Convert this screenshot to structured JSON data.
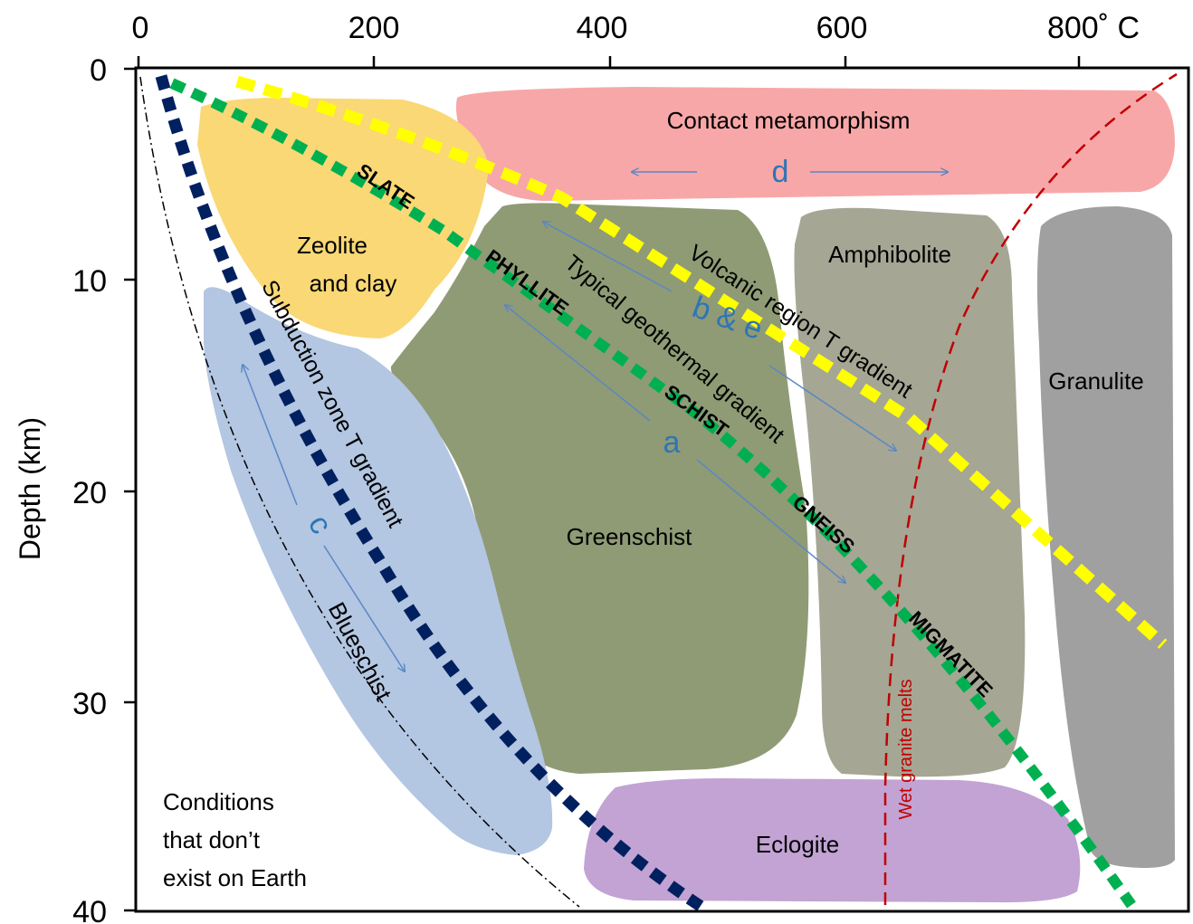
{
  "axes": {
    "x_ticks": [
      "0",
      "200",
      "400",
      "600",
      "800˚ C"
    ],
    "y_ticks": [
      "0",
      "10",
      "20",
      "30",
      "40"
    ],
    "y_label": "Depth (km)"
  },
  "facies": {
    "contact": "Contact metamorphism",
    "zeolite_line1": "Zeolite",
    "zeolite_line2": "and clay",
    "amphibolite": "Amphibolite",
    "granulite": "Granulite",
    "greenschist": "Greenschist",
    "blueschist": "Blueschist",
    "eclogite": "Eclogite"
  },
  "rocks": {
    "slate": "SLATE",
    "phyllite": "PHYLLITE",
    "schist": "SCHIST",
    "gneiss": "GNEISS",
    "migmatite": "MIGMATITE"
  },
  "gradients": {
    "volcanic": "Volcanic region T gradient",
    "typical": "Typical geothermal gradient",
    "subduction": "Subduction zone T gradient"
  },
  "arrow_labels": {
    "a": "a",
    "be": "b & e",
    "c": "c",
    "d": "d"
  },
  "other": {
    "wet_granite": "Wet granite melts",
    "no_earth_1": "Conditions",
    "no_earth_2": "that don’t",
    "no_earth_3": "exist on Earth"
  },
  "colors": {
    "contact": "#f8a7a8",
    "zeolite": "#f9d875",
    "greenschist": "#8f9b75",
    "amphibolite": "#a5a694",
    "granulite": "#a0a0a0",
    "blueschist": "#b3c6e2",
    "eclogite": "#c2a3d4",
    "volcanic_line": "#ffff00",
    "typical_line": "#00b050",
    "subduction_line": "#002060",
    "melt_line": "#c00000",
    "arrows": "#5b87c5"
  }
}
